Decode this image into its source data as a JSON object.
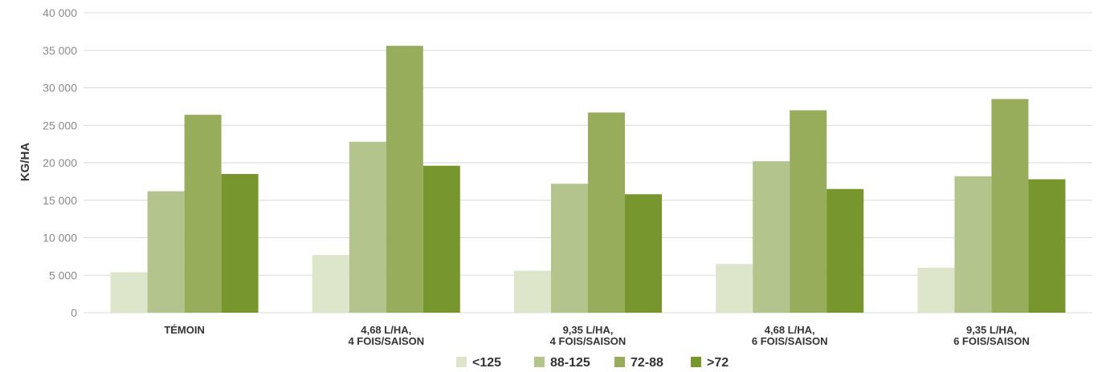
{
  "chart_data": {
    "type": "bar",
    "ylabel": "KG/HA",
    "xlabel": "",
    "ylim": [
      0,
      40000
    ],
    "yticks": [
      0,
      5000,
      10000,
      15000,
      20000,
      25000,
      30000,
      35000,
      40000
    ],
    "ytick_labels": [
      "0",
      "5 000",
      "10 000",
      "15 000",
      "20 000",
      "25 000",
      "30 000",
      "35 000",
      "40 000"
    ],
    "grid": true,
    "legend_position": "bottom",
    "categories": [
      [
        "TÉMOIN"
      ],
      [
        "4,68 L/HA,",
        "4 FOIS/SAISON"
      ],
      [
        "9,35 L/HA,",
        "4 FOIS/SAISON"
      ],
      [
        "4,68 L/HA,",
        "6 FOIS/SAISON"
      ],
      [
        "9,35 L/HA,",
        "6 FOIS/SAISON"
      ]
    ],
    "series": [
      {
        "name": "<125",
        "color": "#dde5cb",
        "values": [
          5400,
          7700,
          5600,
          6500,
          6000
        ]
      },
      {
        "name": "88-125",
        "color": "#b3c58d",
        "values": [
          16200,
          22800,
          17200,
          20200,
          18200
        ]
      },
      {
        "name": "72-88",
        "color": "#97ad5c",
        "values": [
          26400,
          35600,
          26700,
          27000,
          28500
        ]
      },
      {
        "name": ">72",
        "color": "#77962e",
        "values": [
          18500,
          19600,
          15800,
          16500,
          17800
        ]
      }
    ]
  }
}
